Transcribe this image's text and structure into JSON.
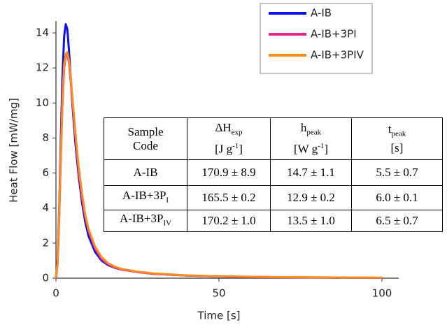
{
  "chart_data": {
    "type": "line",
    "xlabel": "Time [s]",
    "ylabel": "Heat Flow [mW/mg]",
    "x": [
      0,
      0.5,
      1,
      1.5,
      2,
      2.5,
      3,
      3.5,
      4,
      4.5,
      5,
      6,
      7,
      8,
      9,
      10,
      12,
      14,
      16,
      18,
      20,
      25,
      30,
      40,
      50,
      60,
      70,
      80,
      87,
      100
    ],
    "series": [
      {
        "name": "A-IB",
        "color": "#1010f0",
        "values": [
          0,
          1,
          4,
          8,
          11.5,
          13.8,
          14.5,
          14.2,
          13,
          11.5,
          10,
          7.6,
          5.8,
          4.3,
          3.2,
          2.4,
          1.5,
          1.0,
          0.75,
          0.6,
          0.5,
          0.35,
          0.25,
          0.15,
          0.1,
          0.07,
          0.05,
          0.04,
          0.03,
          null
        ]
      },
      {
        "name": "A-IB+3PI",
        "color": "#e8288c",
        "values": [
          0,
          0.8,
          3.5,
          7,
          10,
          12,
          12.7,
          12.8,
          12.3,
          11.3,
          10.2,
          8,
          6.1,
          4.6,
          3.5,
          2.7,
          1.7,
          1.1,
          0.8,
          0.62,
          0.5,
          0.35,
          0.25,
          0.15,
          0.1,
          0.07,
          0.05,
          0.04,
          0.03,
          0.02
        ]
      },
      {
        "name": "A-IB+3PIV",
        "color": "#ff8c1a",
        "values": [
          0,
          0.9,
          3.7,
          7.2,
          10.2,
          12.2,
          12.8,
          12.9,
          12.4,
          11.5,
          10.4,
          8.2,
          6.3,
          4.8,
          3.6,
          2.8,
          1.8,
          1.2,
          0.85,
          0.66,
          0.53,
          0.37,
          0.27,
          0.16,
          0.11,
          0.08,
          0.06,
          0.05,
          0.04,
          0.03
        ]
      }
    ],
    "xlim": [
      0,
      100
    ],
    "ylim": [
      0,
      15
    ],
    "xticks": [
      0,
      50,
      100
    ],
    "yticks": [
      0,
      2,
      4,
      6,
      8,
      10,
      12,
      14
    ],
    "legend": "upper right",
    "line_width": 3
  },
  "table": {
    "header": [
      [
        [
          "Sample"
        ],
        [
          "Code"
        ]
      ],
      [
        [
          "ΔH",
          {
            "sub": "exp"
          }
        ],
        [
          "[J g",
          {
            "sup": "-1"
          },
          "]"
        ]
      ],
      [
        [
          "h",
          {
            "sub": "peak"
          }
        ],
        [
          "[W g",
          {
            "sup": "-1"
          },
          "]"
        ]
      ],
      [
        [
          "t",
          {
            "sub": "peak"
          }
        ],
        [
          "[s]"
        ]
      ]
    ],
    "rows": [
      {
        "code": [
          "A-IB"
        ],
        "cells": [
          "170.9 ± 8.9",
          "14.7 ± 1.1",
          "5.5 ± 0.7"
        ]
      },
      {
        "code": [
          "A-IB+3P",
          {
            "sub": "I"
          }
        ],
        "cells": [
          "165.5 ± 0.2",
          "12.9 ± 0.2",
          "6.0 ± 0.1"
        ]
      },
      {
        "code": [
          "A-IB+3P",
          {
            "sub": "IV"
          }
        ],
        "cells": [
          "170.2 ± 1.0",
          "13.5 ± 1.0",
          "6.5 ± 0.7"
        ]
      }
    ]
  }
}
